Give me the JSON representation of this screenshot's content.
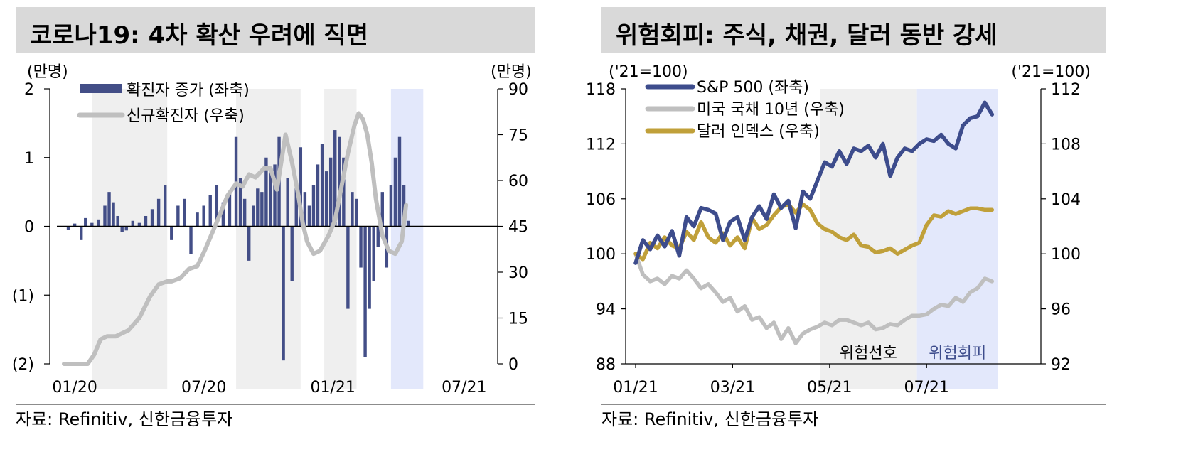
{
  "left": {
    "title": "코로나19: 4차 확산 우려에 직면",
    "source": "자료: Refinitiv, 신한금융투자",
    "unit_left": "(만명)",
    "unit_right": "(만명)",
    "colors": {
      "bar": "#434e87",
      "line": "#bfbfbf",
      "shade": "#efefef",
      "shade_blue": "#e3e8fb"
    },
    "chart_data": {
      "type": "bar",
      "legend": [
        "확진자 증가 (좌축)",
        "신규확진자 (우축)"
      ],
      "y_left": {
        "lim": [
          -2,
          2
        ],
        "ticks": [
          "2",
          "1",
          "0",
          "(1)",
          "(2)"
        ]
      },
      "y_right": {
        "lim": [
          0,
          90
        ],
        "ticks": [
          "90",
          "75",
          "60",
          "45",
          "30",
          "15",
          "0"
        ]
      },
      "x_ticks": [
        "01/20",
        "07/20",
        "01/21",
        "07/21"
      ],
      "x_range_months": [
        0,
        19.5
      ],
      "shaded": [
        [
          1.3,
          4.8
        ],
        [
          8.0,
          11.0
        ],
        [
          12.1,
          13.6
        ]
      ],
      "shaded_blue": [
        [
          15.2,
          16.7
        ]
      ],
      "series": [
        {
          "name": "확진자 증가 (좌축)",
          "kind": "bar",
          "x": [
            0.2,
            0.5,
            0.8,
            1.0,
            1.3,
            1.6,
            1.9,
            2.1,
            2.3,
            2.5,
            2.7,
            2.9,
            3.2,
            3.5,
            3.8,
            4.1,
            4.4,
            4.7,
            5.0,
            5.3,
            5.6,
            5.9,
            6.2,
            6.5,
            6.8,
            7.1,
            7.4,
            7.7,
            8.0,
            8.2,
            8.4,
            8.6,
            8.8,
            9.0,
            9.2,
            9.4,
            9.6,
            9.8,
            10.0,
            10.2,
            10.4,
            10.6,
            10.8,
            11.0,
            11.2,
            11.4,
            11.6,
            11.8,
            12.0,
            12.2,
            12.4,
            12.6,
            12.8,
            13.0,
            13.2,
            13.4,
            13.6,
            13.8,
            14.0,
            14.2,
            14.4,
            14.6,
            14.8,
            15.0,
            15.2,
            15.4,
            15.6,
            15.8,
            16.0
          ],
          "values": [
            -0.05,
            0.04,
            -0.2,
            0.12,
            0.05,
            0.1,
            0.3,
            0.5,
            0.35,
            0.15,
            -0.08,
            -0.06,
            0.08,
            0.05,
            0.15,
            0.25,
            0.4,
            0.6,
            -0.2,
            0.3,
            0.4,
            -0.4,
            0.2,
            0.3,
            0.45,
            0.6,
            0.35,
            0.5,
            1.3,
            0.7,
            0.4,
            -0.5,
            0.3,
            0.55,
            0.5,
            1.0,
            0.8,
            0.9,
            1.3,
            -1.95,
            0.7,
            -0.8,
            0.6,
            1.15,
            0.5,
            0.3,
            0.6,
            0.9,
            1.2,
            0.8,
            1.0,
            1.4,
            1.3,
            1.0,
            -1.2,
            0.5,
            0.4,
            -0.6,
            -1.9,
            -1.2,
            -0.8,
            -0.3,
            0.5,
            -0.6,
            0.6,
            1.0,
            1.3,
            0.6,
            0.08
          ]
        },
        {
          "name": "신규확진자 (우축)",
          "kind": "line",
          "x": [
            0,
            1.1,
            1.4,
            1.7,
            2.0,
            2.4,
            3.0,
            3.5,
            4.0,
            4.4,
            4.8,
            5.0,
            5.4,
            5.8,
            6.2,
            6.6,
            7.2,
            7.6,
            8.0,
            8.3,
            8.6,
            8.9,
            9.3,
            9.6,
            9.9,
            10.3,
            10.6,
            10.9,
            11.1,
            11.3,
            11.6,
            11.9,
            12.3,
            12.6,
            12.9,
            13.2,
            13.5,
            13.7,
            13.9,
            14.1,
            14.3,
            14.5,
            14.8,
            15.1,
            15.4,
            15.7,
            15.9
          ],
          "values": [
            0,
            0,
            3,
            8,
            9,
            9,
            11,
            15,
            22,
            26,
            27,
            27,
            28,
            31,
            32,
            38,
            48,
            55,
            59,
            58,
            62,
            61,
            64,
            64,
            57,
            75,
            66,
            55,
            46,
            40,
            36,
            37,
            42,
            47,
            58,
            69,
            78,
            82,
            80,
            75,
            66,
            54,
            42,
            37,
            36,
            40,
            52
          ]
        }
      ]
    }
  },
  "right": {
    "title": "위험회피: 주식, 채권, 달러 동반 강세",
    "source": "자료: Refinitiv, 신한금융투자",
    "unit_left": "('21=100)",
    "unit_right": "('21=100)",
    "colors": {
      "sp500": "#3d4c8c",
      "treasury": "#bfbfbf",
      "dollar": "#c0a03a",
      "shade": "#efefef",
      "shade_blue": "#e3e8fb"
    },
    "chart_data": {
      "type": "line",
      "legend": [
        "S&P 500 (좌축)",
        "미국 국채 10년 (우축)",
        "달러 인덱스 (우축)"
      ],
      "y_left": {
        "lim": [
          88,
          118
        ],
        "ticks": [
          "118",
          "112",
          "106",
          "100",
          "94",
          "88"
        ]
      },
      "y_right": {
        "lim": [
          92,
          112
        ],
        "ticks": [
          "112",
          "108",
          "104",
          "100",
          "96",
          "92"
        ]
      },
      "x_ticks": [
        "01/21",
        "03/21",
        "05/21",
        "07/21"
      ],
      "x_range_months": [
        0,
        7.8
      ],
      "shaded": [
        [
          3.8,
          5.8
        ]
      ],
      "shaded_blue": [
        [
          5.8,
          8.0
        ]
      ],
      "shade_labels": [
        "위험선호",
        "위험회피"
      ],
      "series": [
        {
          "name": "S&P 500 (좌축)",
          "axis": "left",
          "x": [
            0,
            0.15,
            0.3,
            0.45,
            0.6,
            0.75,
            0.9,
            1.05,
            1.2,
            1.35,
            1.5,
            1.65,
            1.8,
            1.95,
            2.1,
            2.25,
            2.4,
            2.55,
            2.7,
            2.85,
            3.0,
            3.15,
            3.3,
            3.45,
            3.6,
            3.75,
            3.9,
            4.05,
            4.2,
            4.35,
            4.5,
            4.65,
            4.8,
            4.95,
            5.1,
            5.25,
            5.4,
            5.55,
            5.7,
            5.85,
            6.0,
            6.15,
            6.3,
            6.45,
            6.6,
            6.75,
            6.9,
            7.05,
            7.2,
            7.35
          ],
          "values": [
            99,
            101.5,
            100.5,
            102,
            100.8,
            102.5,
            99.8,
            104,
            103,
            105,
            104.8,
            104.4,
            101.5,
            103.5,
            104,
            101.5,
            104,
            105.2,
            103.8,
            106.5,
            105,
            105.8,
            102.8,
            106.8,
            106,
            108,
            110,
            109.5,
            111.2,
            109.8,
            111.5,
            111.2,
            111.8,
            110.5,
            112,
            108.5,
            110.5,
            111.5,
            111.2,
            112,
            112.5,
            112.3,
            113,
            112,
            111.5,
            114,
            114.8,
            115,
            116.5,
            115.2
          ]
        },
        {
          "name": "미국 국채 10년 (우축)",
          "axis": "right",
          "x": [
            0,
            0.15,
            0.3,
            0.45,
            0.6,
            0.75,
            0.9,
            1.05,
            1.2,
            1.35,
            1.5,
            1.65,
            1.8,
            1.95,
            2.1,
            2.25,
            2.4,
            2.55,
            2.7,
            2.85,
            3.0,
            3.15,
            3.3,
            3.45,
            3.6,
            3.75,
            3.9,
            4.05,
            4.2,
            4.35,
            4.5,
            4.65,
            4.8,
            4.95,
            5.1,
            5.25,
            5.4,
            5.55,
            5.7,
            5.85,
            6.0,
            6.15,
            6.3,
            6.45,
            6.6,
            6.75,
            6.9,
            7.05,
            7.2,
            7.35
          ],
          "values": [
            100,
            98.5,
            98.0,
            98.2,
            97.8,
            98.4,
            98.2,
            98.8,
            98.2,
            97.5,
            97.8,
            97.2,
            96.5,
            96.8,
            95.8,
            96.2,
            95.2,
            95.4,
            94.6,
            95.0,
            93.8,
            94.6,
            93.5,
            94.2,
            94.5,
            94.7,
            95.0,
            94.8,
            95.2,
            95.2,
            95.0,
            94.8,
            95.0,
            94.5,
            94.6,
            94.9,
            94.8,
            95.2,
            95.5,
            95.5,
            95.6,
            96.0,
            96.3,
            96.2,
            96.8,
            96.5,
            97.2,
            97.5,
            98.2,
            98.0
          ]
        },
        {
          "name": "달러 인덱스 (우축)",
          "axis": "right",
          "x": [
            0,
            0.15,
            0.3,
            0.45,
            0.6,
            0.75,
            0.9,
            1.05,
            1.2,
            1.35,
            1.5,
            1.65,
            1.8,
            1.95,
            2.1,
            2.25,
            2.4,
            2.55,
            2.7,
            2.85,
            3.0,
            3.15,
            3.3,
            3.45,
            3.6,
            3.75,
            3.9,
            4.05,
            4.2,
            4.35,
            4.5,
            4.65,
            4.8,
            4.95,
            5.1,
            5.25,
            5.4,
            5.55,
            5.7,
            5.85,
            6.0,
            6.15,
            6.3,
            6.45,
            6.6,
            6.75,
            6.9,
            7.05,
            7.2,
            7.35
          ],
          "values": [
            100,
            99.6,
            100.8,
            100.4,
            101.2,
            100.6,
            100.4,
            101.6,
            101,
            102.3,
            101.2,
            100.8,
            101.5,
            100.6,
            101.2,
            100.4,
            102.6,
            101.8,
            102.1,
            102.8,
            103.4,
            103.6,
            103.0,
            103.6,
            103.2,
            102.2,
            101.8,
            101.6,
            101.2,
            101.0,
            101.4,
            100.6,
            100.5,
            100.1,
            100.2,
            100.4,
            100.0,
            100.3,
            100.6,
            100.8,
            102.1,
            102.8,
            102.7,
            103.1,
            102.9,
            103.1,
            103.3,
            103.3,
            103.2,
            103.2
          ]
        }
      ]
    }
  }
}
